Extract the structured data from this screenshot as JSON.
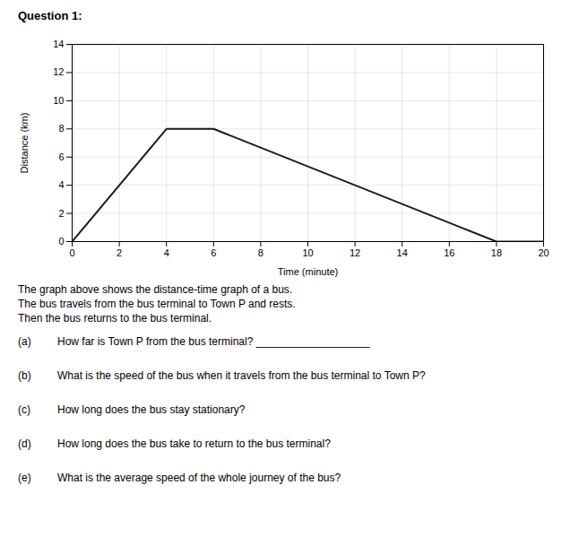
{
  "chart_data": {
    "type": "line",
    "title": "Question 1:",
    "x_label": "Time (minute)",
    "y_label": "Distance (km)",
    "x": [
      0,
      4,
      6,
      18,
      20
    ],
    "values": [
      0,
      8,
      8,
      0,
      0
    ],
    "color": "#1a1a1a",
    "xlim": [
      0,
      20
    ],
    "ylim": [
      0,
      14
    ],
    "xticks": [
      0,
      2,
      4,
      6,
      8,
      10,
      12,
      14,
      16,
      18,
      20
    ],
    "yticks": [
      0,
      2,
      4,
      6,
      8,
      10,
      12,
      14
    ],
    "grid": true,
    "annotations": [
      {
        "text": "The graph above shows the distance-time graph of a bus."
      },
      {
        "text": "The bus travels from the bus terminal to Town P and rests."
      },
      {
        "text": "Then the bus returns to the bus terminal."
      },
      {
        "label": "(a)",
        "text": "How far is Town P from the bus terminal? ___________________"
      },
      {
        "label": "(b)",
        "text": "What is the speed of the bus when it travels from the bus terminal to Town P?"
      },
      {
        "label": "(c)",
        "text": "How long does the bus stay stationary?"
      },
      {
        "label": "(d)",
        "text": "How long does the bus take to return to the bus terminal?"
      },
      {
        "label": "(e)",
        "text": "What is the average speed of the whole journey of the bus?"
      }
    ]
  }
}
